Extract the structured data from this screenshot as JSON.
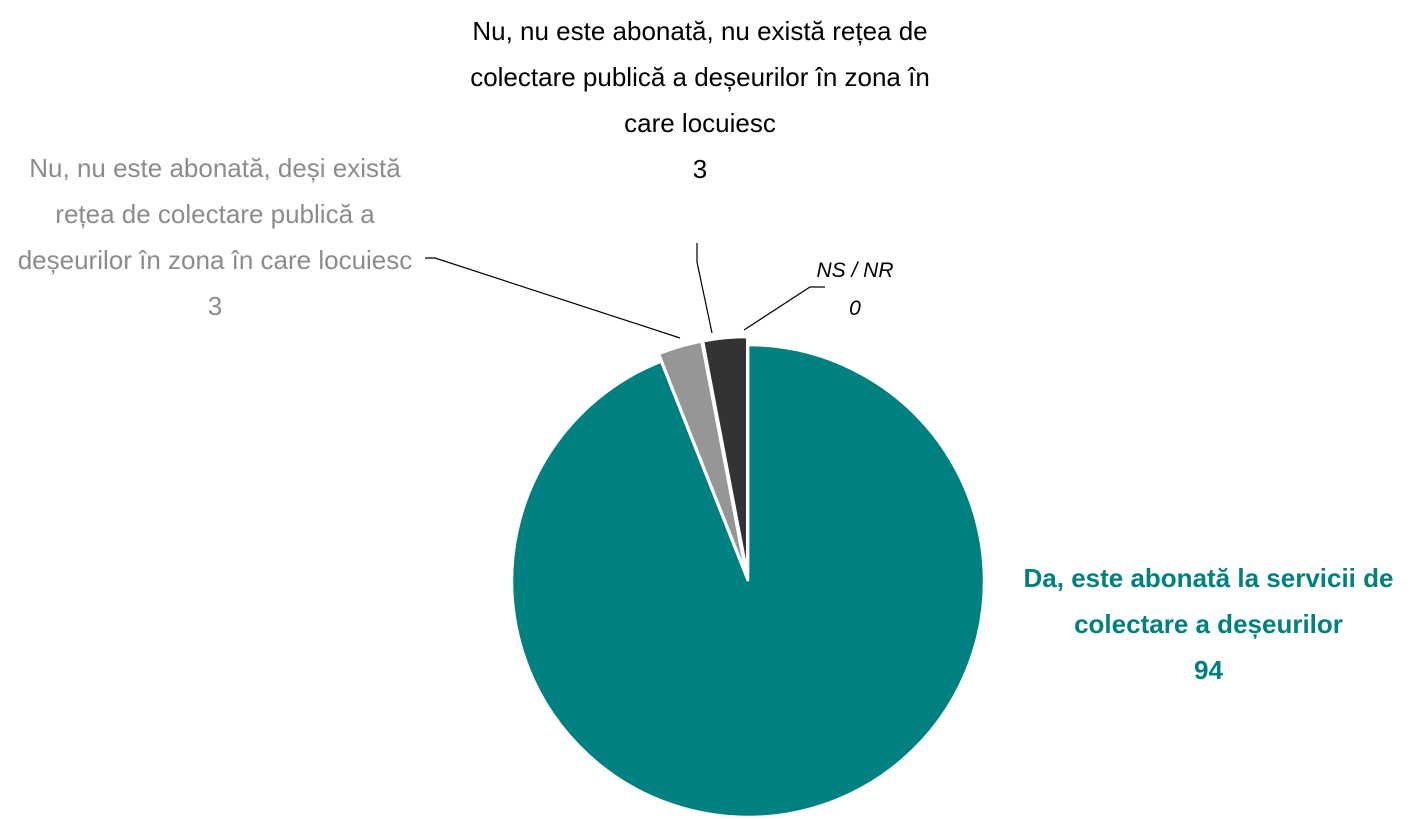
{
  "chart_data": {
    "type": "pie",
    "categories": [
      "Da, este abonată la servicii de colectare a deșeurilor",
      "Nu, nu este abonată, deși există rețea de colectare publică a deșeurilor în zona în care locuiesc",
      "Nu, nu este abonată, nu există rețea de colectare publică a deșeurilor în zona în care locuiesc",
      "NS / NR"
    ],
    "values": [
      94,
      3,
      3,
      0
    ],
    "colors": [
      "#008080",
      "#969696",
      "#333333",
      "#bfbfbf"
    ]
  }
}
